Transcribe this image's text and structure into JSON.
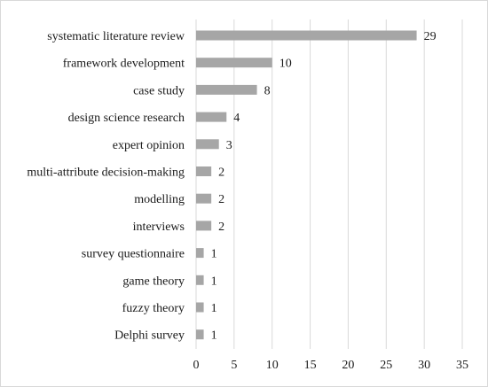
{
  "chart_data": {
    "type": "bar",
    "orientation": "horizontal",
    "title": "",
    "xlabel": "",
    "ylabel": "",
    "categories": [
      "systematic literature review",
      "framework development",
      "case study",
      "design science research",
      "expert opinion",
      "multi-attribute decision-making",
      "modelling",
      "interviews",
      "survey questionnaire",
      "game theory",
      "fuzzy theory",
      "Delphi survey"
    ],
    "values": [
      29,
      10,
      8,
      4,
      3,
      2,
      2,
      2,
      1,
      1,
      1,
      1
    ],
    "xlim": [
      0,
      35
    ],
    "xticks": [
      0,
      5,
      10,
      15,
      20,
      25,
      30,
      35
    ],
    "grid": true,
    "legend": "none",
    "show_data_labels": true,
    "bar_color": "#a6a6a6",
    "grid_color": "#d9d9d9"
  }
}
